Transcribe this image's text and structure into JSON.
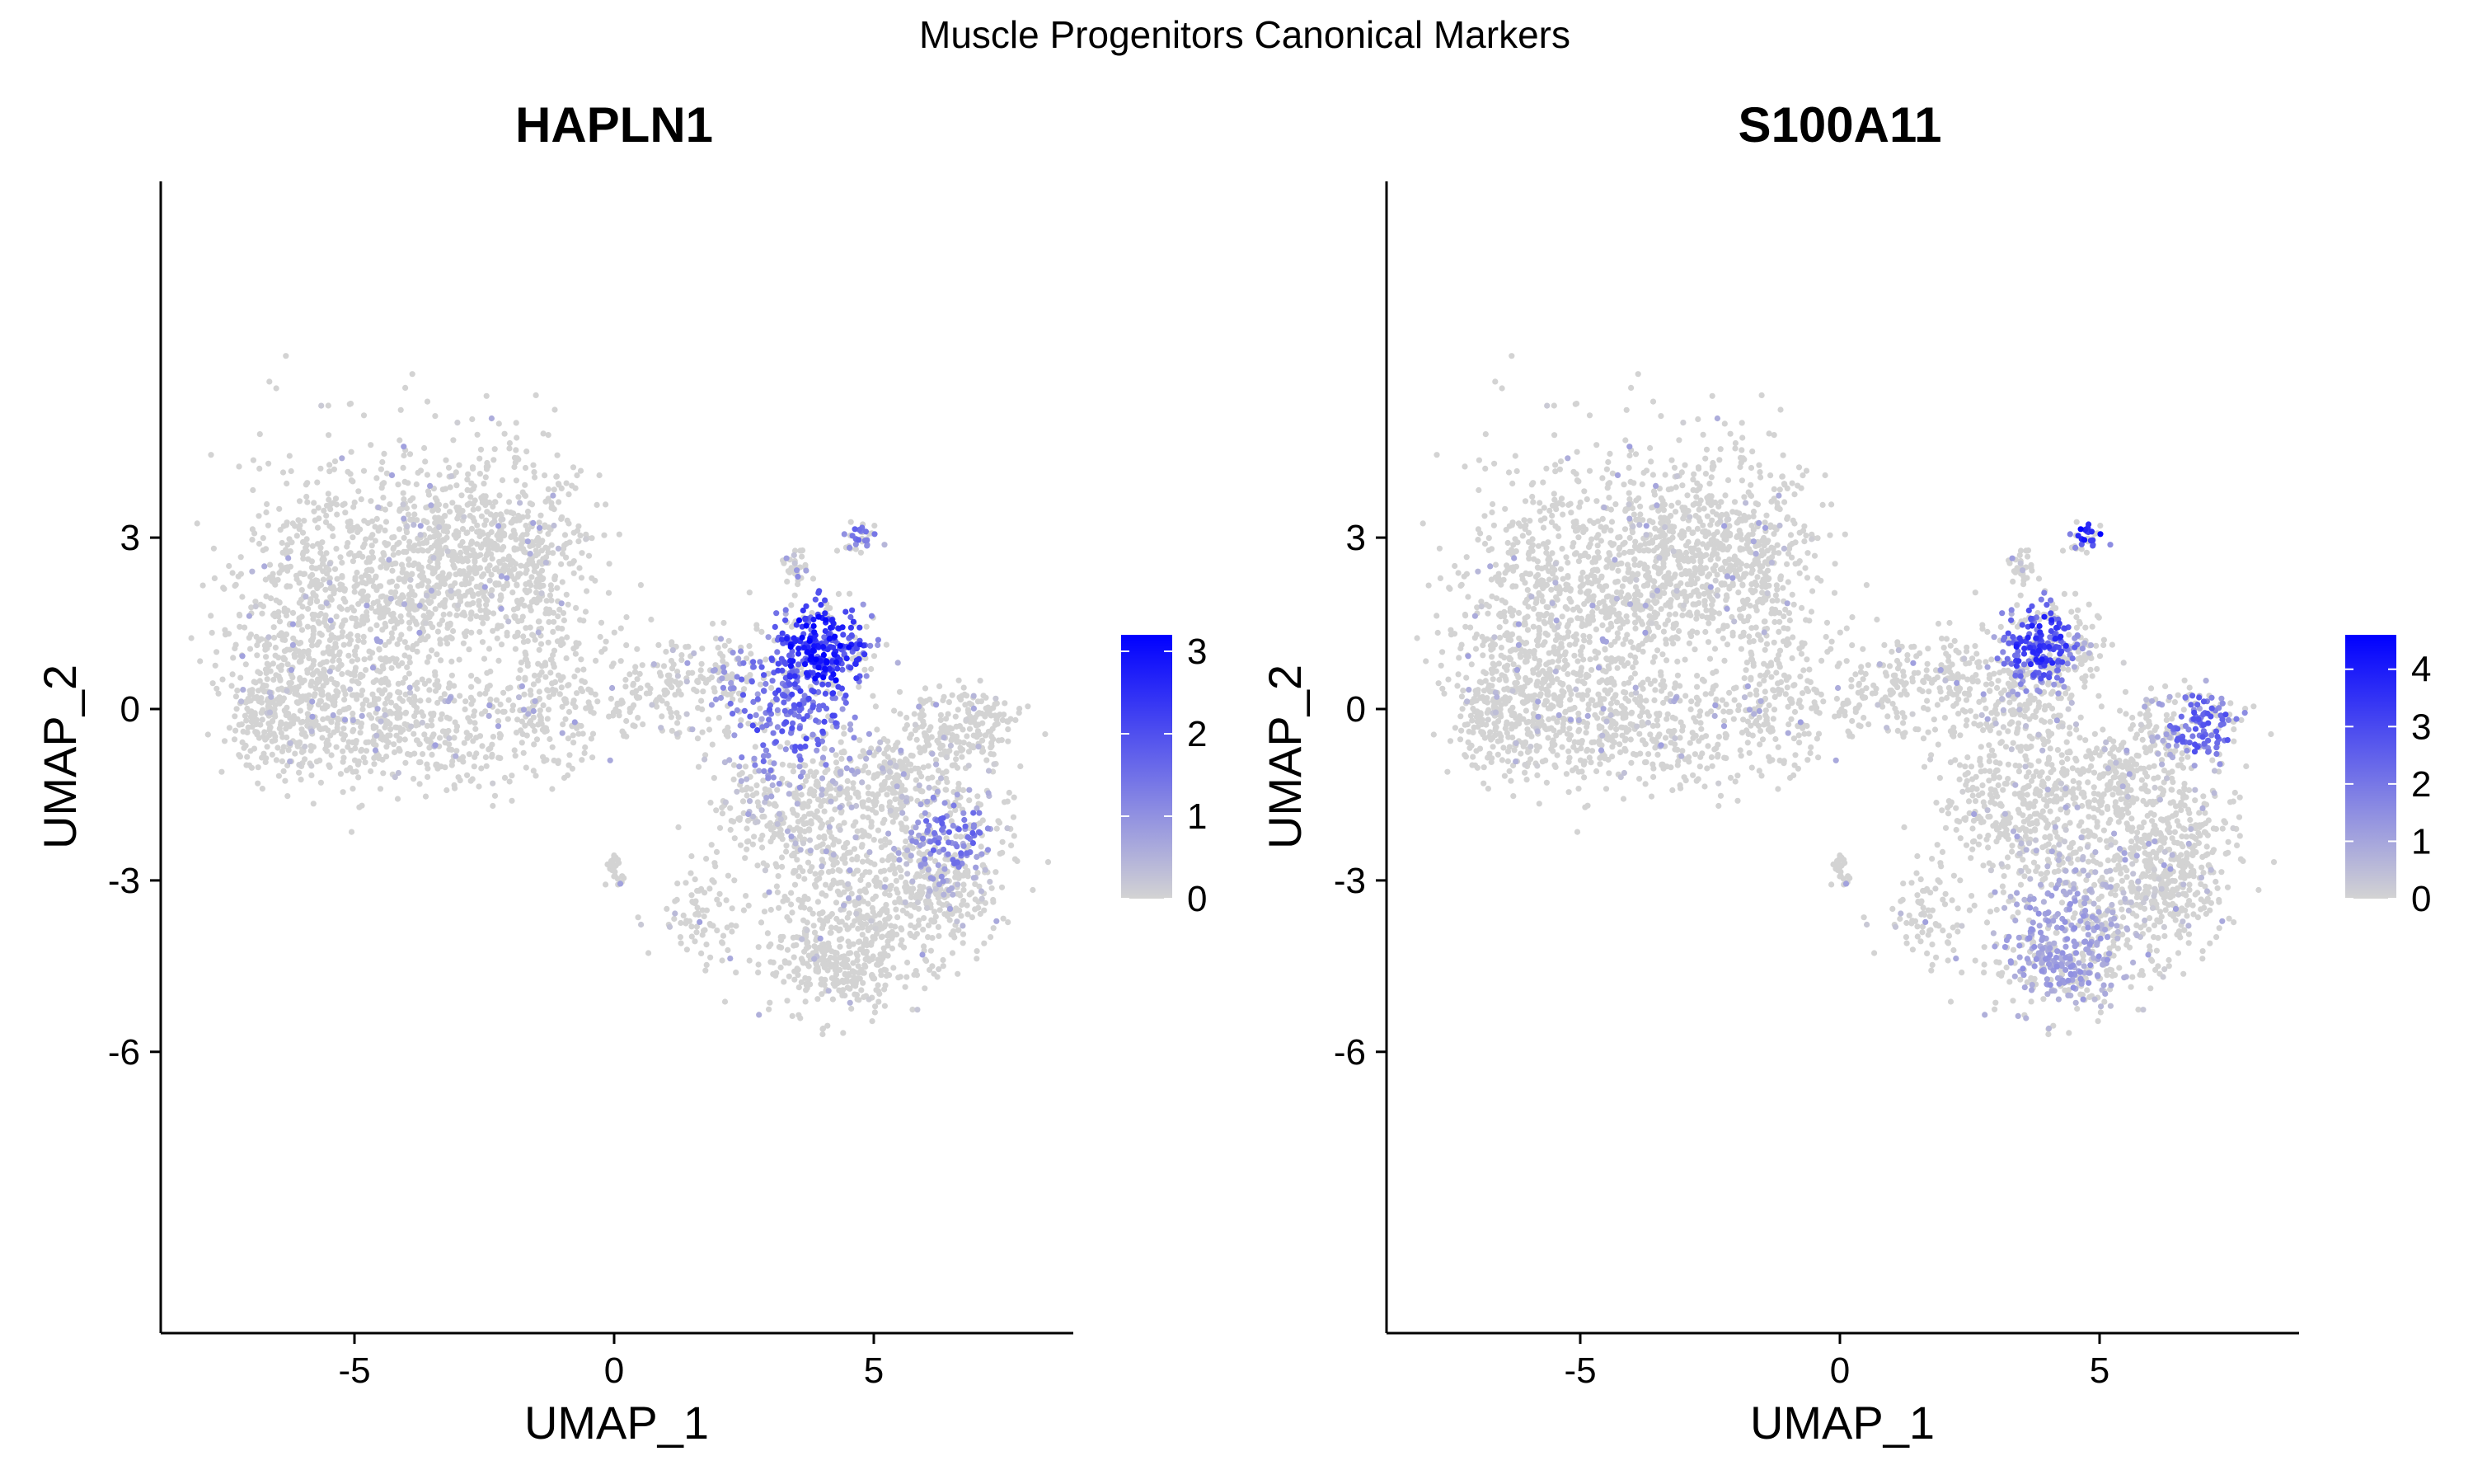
{
  "figure_title": "Muscle Progenitors Canonical Markers",
  "chart_data": [
    {
      "type": "scatter",
      "title": "HAPLN1",
      "xlabel": "UMAP_1",
      "ylabel": "UMAP_2",
      "xlim": [
        -8.8,
        8.8
      ],
      "ylim": [
        -6.5,
        5.5
      ],
      "xticks": [
        -5,
        0,
        5
      ],
      "yticks": [
        -6,
        -3,
        0,
        3
      ],
      "grid": false,
      "legend": {
        "position": "right",
        "type": "colorbar",
        "min": 0,
        "max": 3.2,
        "ticks": [
          0,
          1,
          2,
          3
        ],
        "low_color": "#d3d3d3",
        "high_color": "#0000ff"
      },
      "expression_hotspots": [
        {
          "x": 4.0,
          "y": 1.1,
          "spread": 0.8,
          "peak": 3.2,
          "weight": 0.5
        },
        {
          "x": 3.4,
          "y": 0.1,
          "spread": 1.0,
          "peak": 2.2,
          "weight": 0.3
        },
        {
          "x": 4.7,
          "y": 3.0,
          "spread": 0.3,
          "peak": 1.8,
          "weight": 0.08
        },
        {
          "x": 6.5,
          "y": -2.2,
          "spread": 0.6,
          "peak": 1.8,
          "weight": 0.12
        }
      ]
    },
    {
      "type": "scatter",
      "title": "S100A11",
      "xlabel": "UMAP_1",
      "ylabel": "UMAP_2",
      "xlim": [
        -8.8,
        8.8
      ],
      "ylim": [
        -6.5,
        5.5
      ],
      "xticks": [
        -5,
        0,
        5
      ],
      "yticks": [
        -6,
        -3,
        0,
        3
      ],
      "grid": false,
      "legend": {
        "position": "right",
        "type": "colorbar",
        "min": 0,
        "max": 4.6,
        "ticks": [
          0,
          1,
          2,
          3,
          4
        ],
        "low_color": "#d3d3d3",
        "high_color": "#0000ff"
      },
      "expression_hotspots": [
        {
          "x": 4.8,
          "y": 3.1,
          "spread": 0.3,
          "peak": 4.6,
          "weight": 0.15
        },
        {
          "x": 3.8,
          "y": 1.2,
          "spread": 0.6,
          "peak": 4.0,
          "weight": 0.35
        },
        {
          "x": 7.0,
          "y": -0.3,
          "spread": 0.6,
          "peak": 3.0,
          "weight": 0.25
        },
        {
          "x": 4.2,
          "y": -4.2,
          "spread": 1.0,
          "peak": 1.5,
          "weight": 0.25
        }
      ]
    }
  ]
}
